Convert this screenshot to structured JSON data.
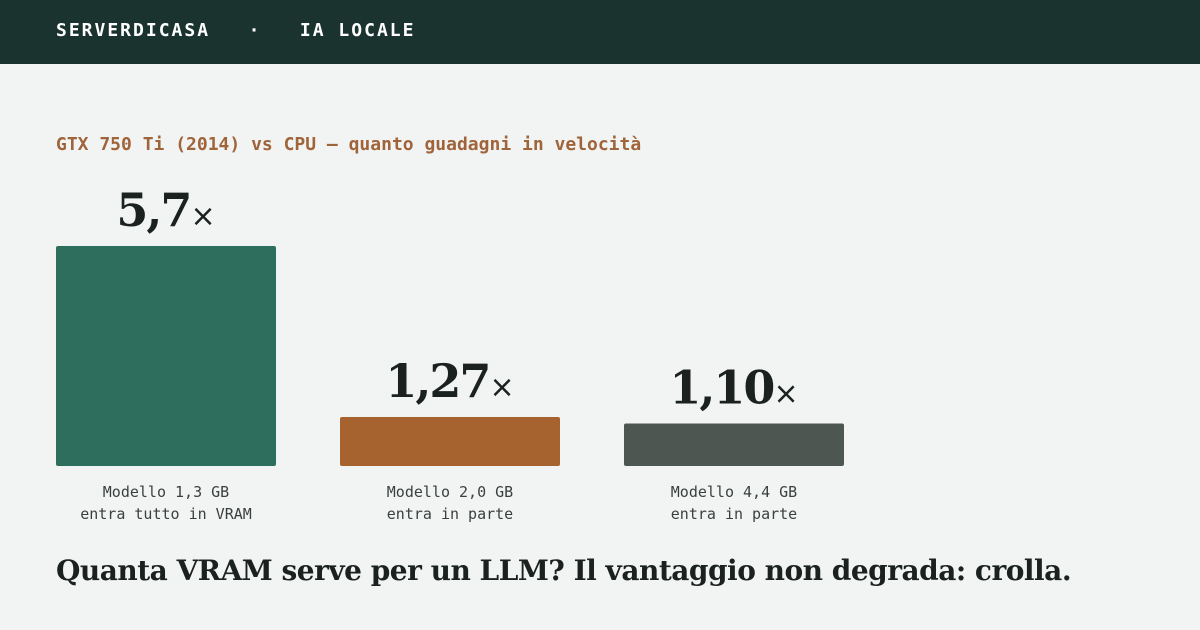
{
  "header": {
    "brand": "SERVERDICASA",
    "separator": "·",
    "section": "IA LOCALE"
  },
  "subtitle": "GTX 750 Ti (2014) vs CPU — quanto guadagni in velocità",
  "headline": "Quanta VRAM serve per un LLM? Il vantaggio non degrada: crolla.",
  "chart_data": {
    "type": "bar",
    "title": "GTX 750 Ti (2014) vs CPU — quanto guadagni in velocità",
    "categories": [
      [
        "Modello 1,3 GB",
        "entra tutto in VRAM"
      ],
      [
        "Modello 2,0 GB",
        "entra in parte"
      ],
      [
        "Modello 4,4 GB",
        "entra in parte"
      ]
    ],
    "values": [
      5.7,
      1.27,
      1.1
    ],
    "value_labels": [
      "5,7",
      "1,27",
      "1,10"
    ],
    "value_suffix": "×",
    "colors": [
      "#2e6e5d",
      "#a6622f",
      "#4d5650"
    ],
    "grid": false,
    "legend": "none"
  }
}
